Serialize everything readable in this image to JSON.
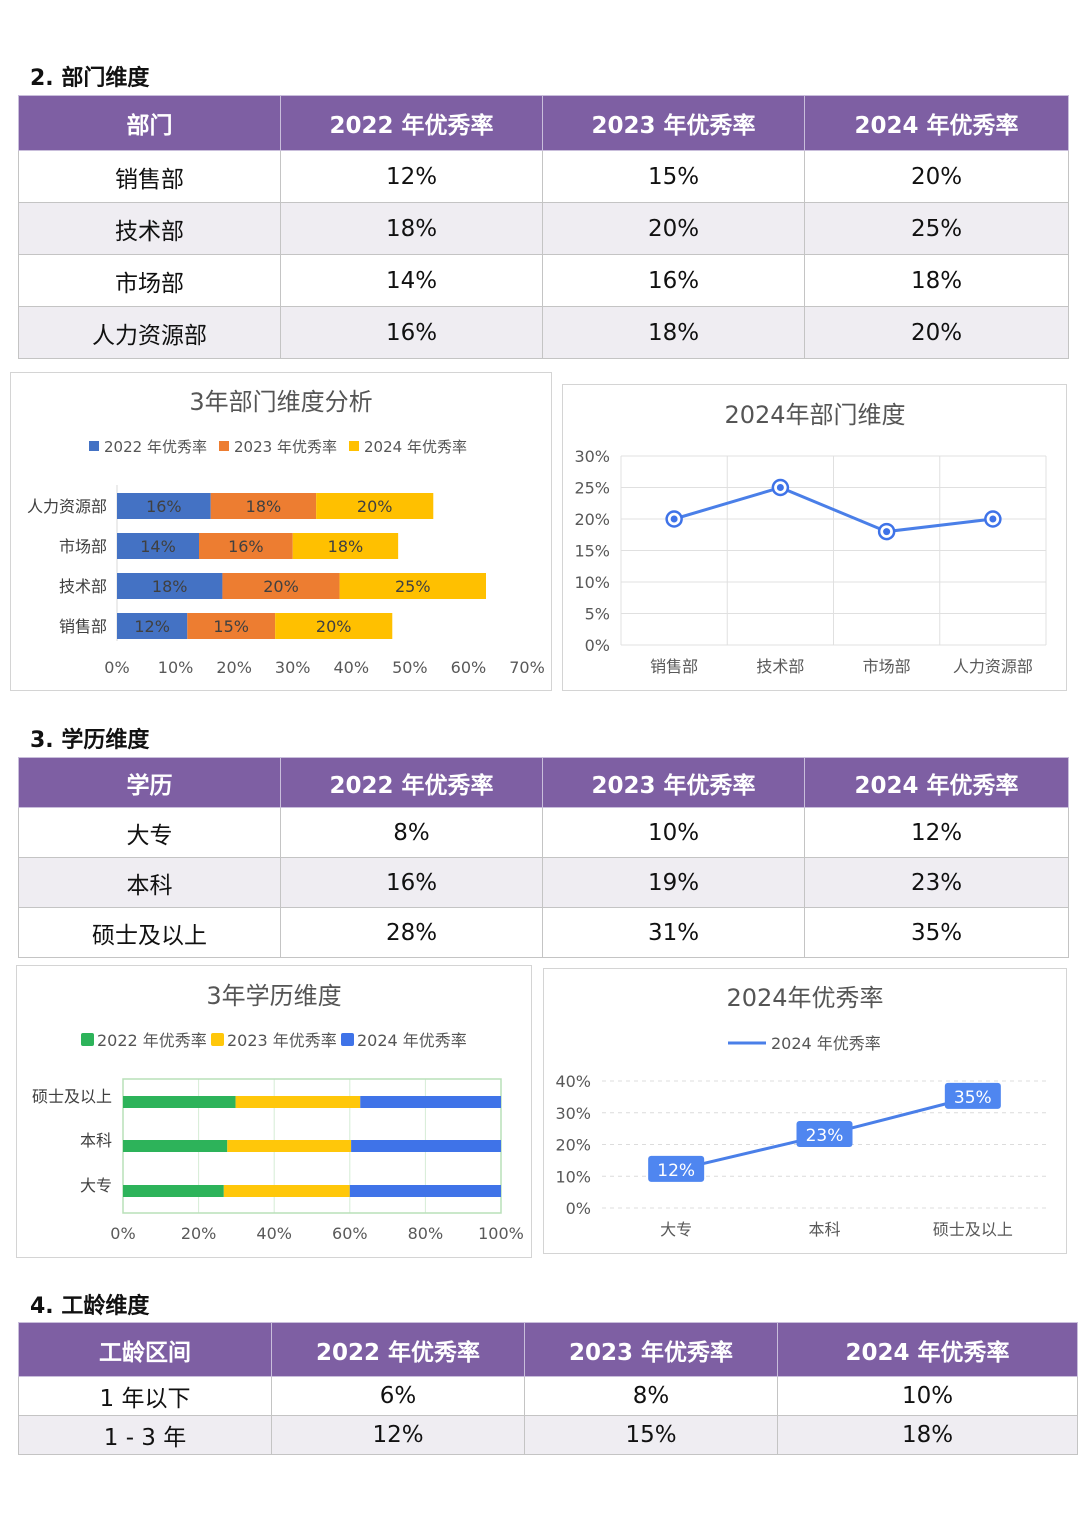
{
  "sections": {
    "dept": {
      "heading": "2. 部门维度",
      "headers": [
        "部门",
        "2022 年优秀率",
        "2023 年优秀率",
        "2024 年优秀率"
      ],
      "rows": [
        [
          "销售部",
          "12%",
          "15%",
          "20%"
        ],
        [
          "技术部",
          "18%",
          "20%",
          "25%"
        ],
        [
          "市场部",
          "14%",
          "16%",
          "18%"
        ],
        [
          "人力资源部",
          "16%",
          "18%",
          "20%"
        ]
      ]
    },
    "edu": {
      "heading": "3. 学历维度",
      "headers": [
        "学历",
        "2022 年优秀率",
        "2023 年优秀率",
        "2024 年优秀率"
      ],
      "rows": [
        [
          "大专",
          "8%",
          "10%",
          "12%"
        ],
        [
          "本科",
          "16%",
          "19%",
          "23%"
        ],
        [
          "硕士及以上",
          "28%",
          "31%",
          "35%"
        ]
      ]
    },
    "tenure": {
      "heading": "4. 工龄维度",
      "headers": [
        "工龄区间",
        "2022 年优秀率",
        "2023 年优秀率",
        "2024 年优秀率"
      ],
      "rows": [
        [
          "1 年以下",
          "6%",
          "8%",
          "10%"
        ],
        [
          "1 - 3 年",
          "12%",
          "15%",
          "18%"
        ]
      ]
    }
  },
  "colors": {
    "header_purple": "#7e5fa3",
    "blue": "#4472c4",
    "orange": "#ed7d31",
    "gold": "#ffc000",
    "green": "#2db35a",
    "yellow": "#ffc70a",
    "bright_blue": "#3f73e8",
    "line_blue": "#4a7fe8"
  },
  "chart_data": [
    {
      "type": "bar",
      "stacked": true,
      "orientation": "horizontal",
      "title": "3年部门维度分析",
      "categories": [
        "人力资源部",
        "市场部",
        "技术部",
        "销售部"
      ],
      "series": [
        {
          "name": "2022 年优秀率",
          "values": [
            16,
            14,
            18,
            12
          ],
          "labels": [
            "16%",
            "14%",
            "18%",
            "12%"
          ]
        },
        {
          "name": "2023 年优秀率",
          "values": [
            18,
            16,
            20,
            15
          ],
          "labels": [
            "18%",
            "16%",
            "20%",
            "15%"
          ]
        },
        {
          "name": "2024 年优秀率",
          "values": [
            20,
            18,
            25,
            20
          ],
          "labels": [
            "20%",
            "18%",
            "25%",
            "20%"
          ]
        }
      ],
      "xlim": [
        0,
        70
      ],
      "xticks": [
        "0%",
        "10%",
        "20%",
        "30%",
        "40%",
        "50%",
        "60%",
        "70%"
      ],
      "legend": "top",
      "grid": false
    },
    {
      "type": "line",
      "title": "2024年部门维度",
      "categories": [
        "销售部",
        "技术部",
        "市场部",
        "人力资源部"
      ],
      "series": [
        {
          "values": [
            20,
            25,
            18,
            20
          ]
        }
      ],
      "ylim": [
        0,
        30
      ],
      "yticks": [
        "0%",
        "5%",
        "10%",
        "15%",
        "20%",
        "25%",
        "30%"
      ],
      "grid": true
    },
    {
      "type": "bar",
      "stacked": true,
      "percent_stacked": true,
      "orientation": "horizontal",
      "title": "3年学历维度",
      "categories": [
        "硕士及以上",
        "本科",
        "大专"
      ],
      "series": [
        {
          "name": "2022 年优秀率",
          "values": [
            28,
            16,
            8
          ]
        },
        {
          "name": "2023 年优秀率",
          "values": [
            31,
            19,
            10
          ]
        },
        {
          "name": "2024 年优秀率",
          "values": [
            35,
            23,
            12
          ]
        }
      ],
      "xlim": [
        0,
        100
      ],
      "xticks": [
        "0%",
        "20%",
        "40%",
        "60%",
        "80%",
        "100%"
      ],
      "legend": "top",
      "grid": true
    },
    {
      "type": "line",
      "title": "2024年优秀率",
      "categories": [
        "大专",
        "本科",
        "硕士及以上"
      ],
      "series": [
        {
          "name": "2024 年优秀率",
          "values": [
            12,
            23,
            35
          ],
          "labels": [
            "12%",
            "23%",
            "35%"
          ]
        }
      ],
      "ylim": [
        0,
        40
      ],
      "yticks": [
        "0%",
        "10%",
        "20%",
        "30%",
        "40%"
      ],
      "legend": "top",
      "grid": true
    }
  ]
}
